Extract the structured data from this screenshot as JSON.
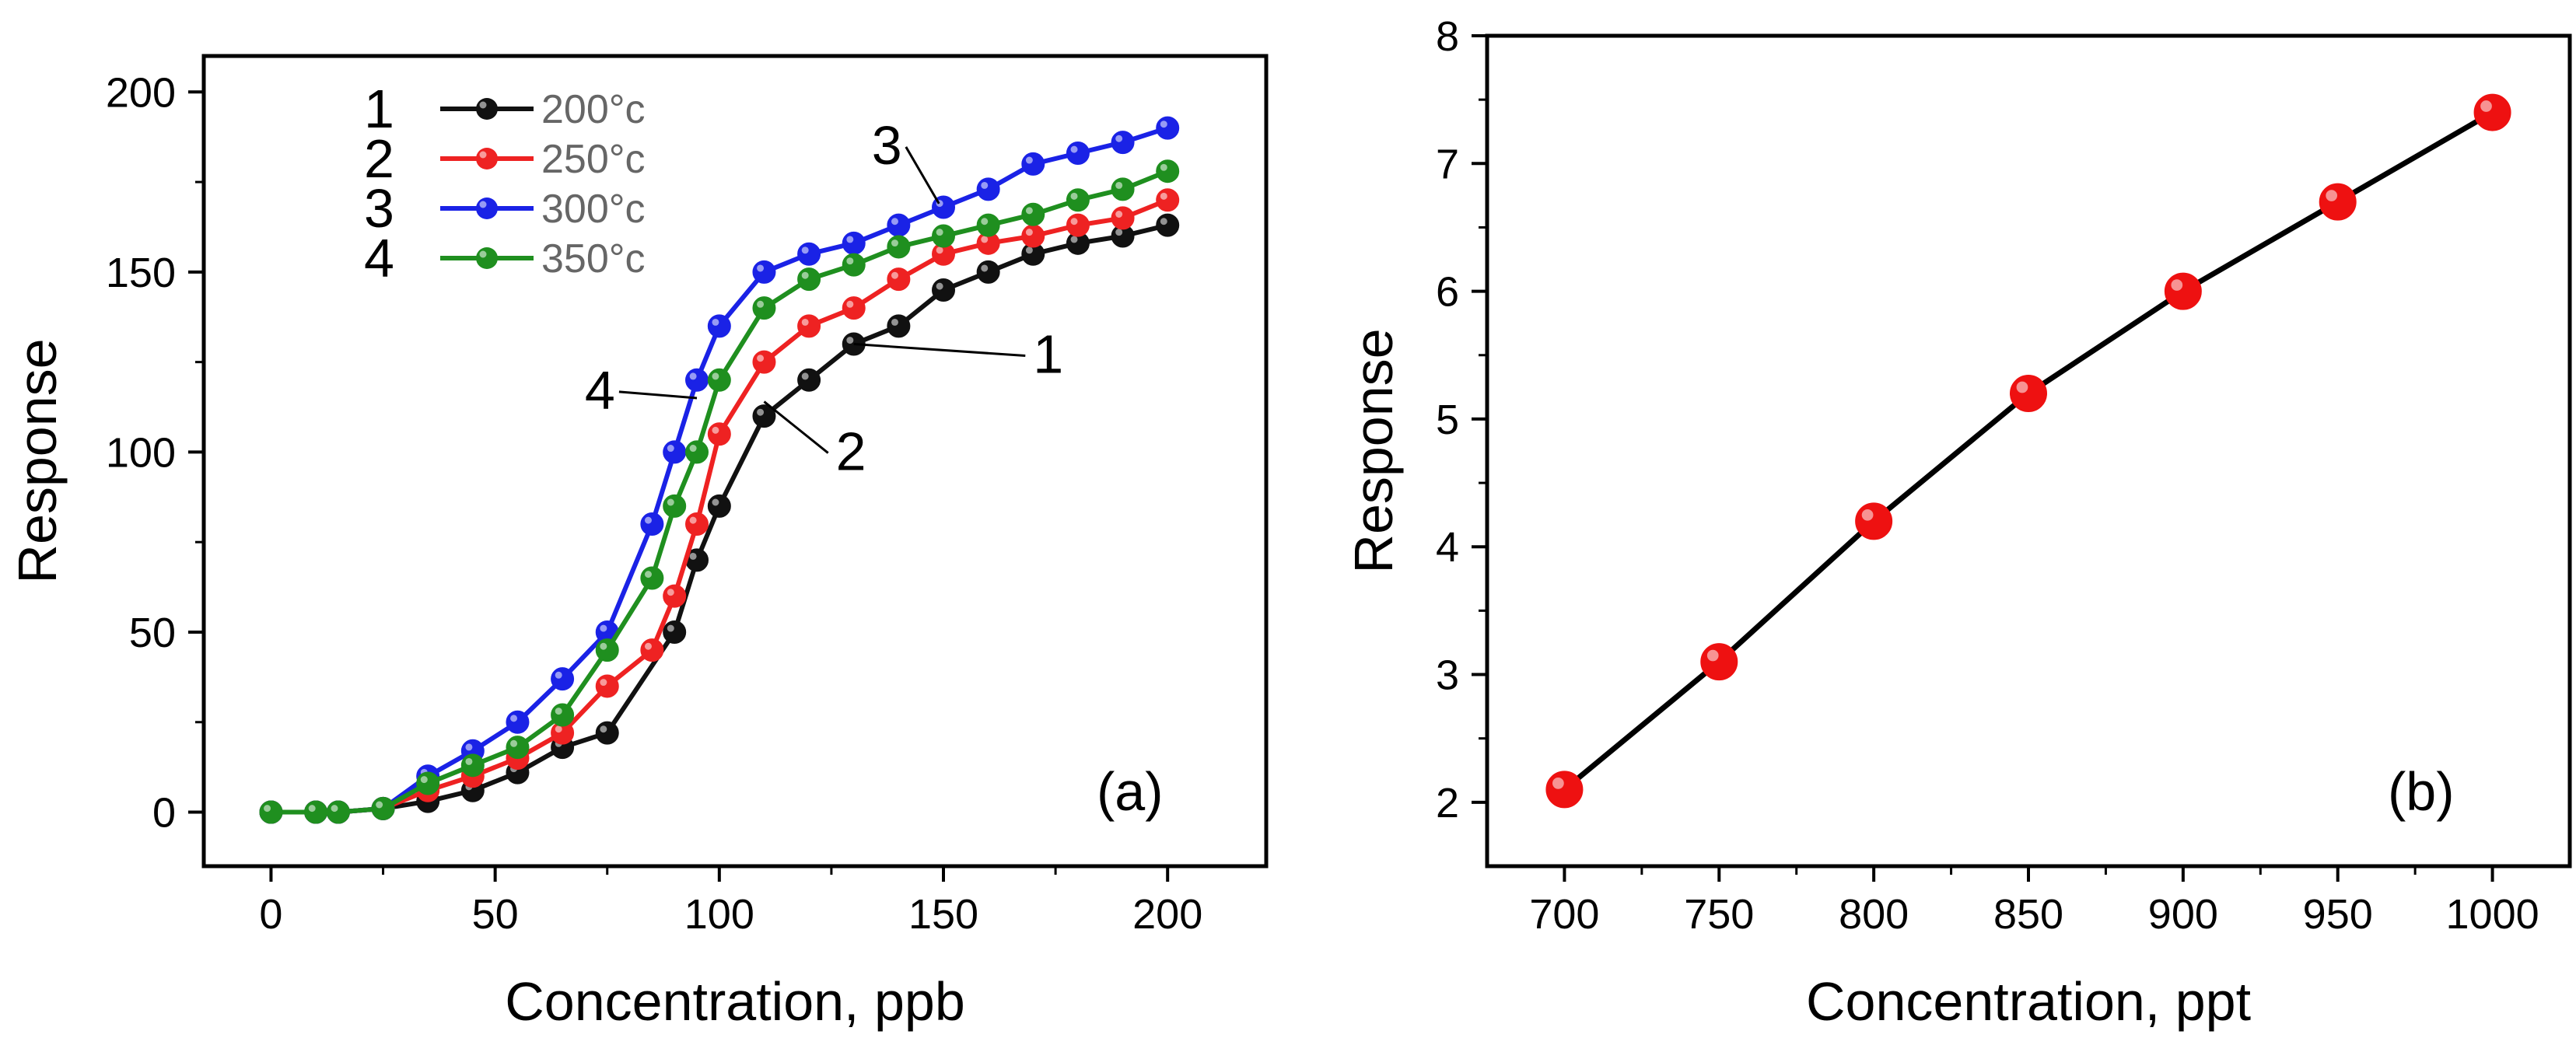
{
  "chart_data": [
    {
      "panel": "(a)",
      "type": "line",
      "xlabel": "Concentration, ppb",
      "ylabel": "Response",
      "xlim": [
        -15,
        222
      ],
      "ylim": [
        -15,
        210
      ],
      "xticks": [
        0,
        50,
        100,
        150,
        200
      ],
      "xtick_labels": [
        "0",
        "50",
        "100",
        "150",
        "200"
      ],
      "yticks": [
        0,
        50,
        100,
        150,
        200
      ],
      "ytick_labels": [
        "0",
        "50",
        "100",
        "150",
        "200"
      ],
      "legend_position": "top-left",
      "series": [
        {
          "name": "200°c",
          "number": "1",
          "color": "#111111",
          "x": [
            0,
            10,
            15,
            25,
            35,
            45,
            55,
            65,
            75,
            90,
            95,
            100,
            110,
            120,
            130,
            140,
            150,
            160,
            170,
            180,
            190,
            200
          ],
          "y": [
            0,
            0,
            0,
            1,
            3,
            6,
            11,
            18,
            22,
            50,
            70,
            85,
            110,
            120,
            130,
            135,
            145,
            150,
            155,
            158,
            160,
            163
          ]
        },
        {
          "name": "250°c",
          "number": "2",
          "color": "#ee2222",
          "x": [
            0,
            10,
            15,
            25,
            35,
            45,
            55,
            65,
            75,
            85,
            90,
            95,
            100,
            110,
            120,
            130,
            140,
            150,
            160,
            170,
            180,
            190,
            200
          ],
          "y": [
            0,
            0,
            0,
            1,
            6,
            10,
            15,
            22,
            35,
            45,
            60,
            80,
            105,
            125,
            135,
            140,
            148,
            155,
            158,
            160,
            163,
            165,
            170
          ]
        },
        {
          "name": "300°c",
          "number": "3",
          "color": "#1a22e6",
          "x": [
            0,
            10,
            15,
            25,
            35,
            45,
            55,
            65,
            75,
            85,
            90,
            95,
            100,
            110,
            120,
            130,
            140,
            150,
            160,
            170,
            180,
            190,
            200
          ],
          "y": [
            0,
            0,
            0,
            1,
            10,
            17,
            25,
            37,
            50,
            80,
            100,
            120,
            135,
            150,
            155,
            158,
            163,
            168,
            173,
            180,
            183,
            186,
            190
          ]
        },
        {
          "name": "350°c",
          "number": "4",
          "color": "#1f8f1f",
          "x": [
            0,
            10,
            15,
            25,
            35,
            45,
            55,
            65,
            75,
            85,
            90,
            95,
            100,
            110,
            120,
            130,
            140,
            150,
            160,
            170,
            180,
            190,
            200
          ],
          "y": [
            0,
            0,
            0,
            1,
            8,
            13,
            18,
            27,
            45,
            65,
            85,
            100,
            120,
            140,
            148,
            152,
            157,
            160,
            163,
            166,
            170,
            173,
            178
          ]
        }
      ],
      "annotations": [
        {
          "text": "1",
          "x": 170,
          "y": 122,
          "point_x": 130,
          "point_y": 130
        },
        {
          "text": "2",
          "x": 126,
          "y": 95,
          "point_x": 110,
          "point_y": 114
        },
        {
          "text": "3",
          "x": 134,
          "y": 180,
          "point_x": 149,
          "point_y": 169
        },
        {
          "text": "4",
          "x": 70,
          "y": 112,
          "point_x": 95,
          "point_y": 115
        }
      ]
    },
    {
      "panel": "(b)",
      "type": "line",
      "xlabel": "Concentration, ppt",
      "ylabel": "Response",
      "xlim": [
        675,
        1025
      ],
      "ylim": [
        1.5,
        8
      ],
      "xticks": [
        700,
        750,
        800,
        850,
        900,
        950,
        1000
      ],
      "xtick_labels": [
        "700",
        "750",
        "800",
        "850",
        "900",
        "950",
        "1000"
      ],
      "yticks": [
        2,
        3,
        4,
        5,
        6,
        7,
        8
      ],
      "ytick_labels": [
        "2",
        "3",
        "4",
        "5",
        "6",
        "7",
        "8"
      ],
      "series": [
        {
          "name": "Response",
          "color": "#000000",
          "marker_color": "#ee1111",
          "x": [
            700,
            750,
            800,
            850,
            900,
            950,
            1000
          ],
          "y": [
            2.1,
            3.1,
            4.2,
            5.2,
            6.0,
            6.7,
            7.4
          ]
        }
      ]
    }
  ]
}
